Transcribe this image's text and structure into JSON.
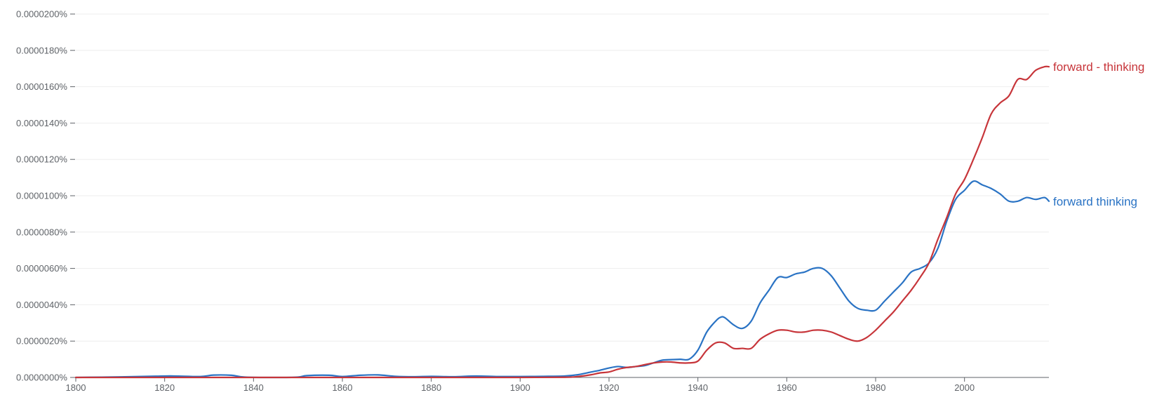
{
  "chart_data": {
    "type": "line",
    "title": "",
    "xlabel": "",
    "ylabel": "",
    "xlim": [
      1800,
      2019
    ],
    "ylim": [
      0,
      2e-05
    ],
    "grid": true,
    "legend": "inline-right",
    "x_ticks": [
      1800,
      1820,
      1840,
      1860,
      1880,
      1900,
      1920,
      1940,
      1960,
      1980,
      2000
    ],
    "x_tick_labels": [
      "1800",
      "1820",
      "1840",
      "1860",
      "1880",
      "1900",
      "1920",
      "1940",
      "1960",
      "1980",
      "2000"
    ],
    "y_ticks": [
      0,
      2e-06,
      4e-06,
      6e-06,
      8e-06,
      1e-05,
      1.2e-05,
      1.4e-05,
      1.6e-05,
      1.8e-05,
      2e-05
    ],
    "y_tick_labels": [
      "0.0000000%",
      "0.0000020%",
      "0.0000040%",
      "0.0000060%",
      "0.0000080%",
      "0.0000100%",
      "0.0000120%",
      "0.0000140%",
      "0.0000160%",
      "0.0000180%",
      "0.0000200%"
    ],
    "colors": {
      "axis": "#5f6368",
      "grid": "#eeeeee"
    },
    "series": [
      {
        "name": "forward thinking",
        "color": "#1a73e8",
        "stroke": "#2a73c4",
        "x": [
          1800,
          1810,
          1818,
          1822,
          1828,
          1831,
          1835,
          1838,
          1845,
          1850,
          1852,
          1857,
          1860,
          1864,
          1868,
          1872,
          1876,
          1880,
          1885,
          1890,
          1895,
          1900,
          1905,
          1910,
          1913,
          1916,
          1918,
          1920,
          1922,
          1924,
          1926,
          1928,
          1930,
          1932,
          1934,
          1936,
          1938,
          1940,
          1942,
          1944,
          1945,
          1946,
          1948,
          1950,
          1952,
          1954,
          1956,
          1958,
          1960,
          1962,
          1964,
          1966,
          1968,
          1970,
          1972,
          1974,
          1976,
          1978,
          1980,
          1982,
          1984,
          1986,
          1988,
          1990,
          1992,
          1994,
          1996,
          1998,
          2000,
          2002,
          2004,
          2006,
          2008,
          2010,
          2012,
          2014,
          2016,
          2018,
          2019
        ],
        "values": [
          0,
          3e-08,
          7e-08,
          8e-08,
          5e-08,
          1.3e-07,
          1.2e-07,
          2e-08,
          0,
          2e-08,
          1e-07,
          1.2e-07,
          5e-08,
          1.2e-07,
          1.4e-07,
          6e-08,
          4e-08,
          6e-08,
          4e-08,
          8e-08,
          5e-08,
          5e-08,
          6e-08,
          8e-08,
          1.5e-07,
          3e-07,
          4e-07,
          5.2e-07,
          6e-07,
          5.5e-07,
          6e-07,
          6.5e-07,
          8e-07,
          9.5e-07,
          9.8e-07,
          1e-06,
          1e-06,
          1.5e-06,
          2.5e-06,
          3.1e-06,
          3.3e-06,
          3.3e-06,
          2.9e-06,
          2.7e-06,
          3.1e-06,
          4.1e-06,
          4.8e-06,
          5.5e-06,
          5.5e-06,
          5.7e-06,
          5.8e-06,
          6e-06,
          6e-06,
          5.6e-06,
          4.9e-06,
          4.2e-06,
          3.8e-06,
          3.7e-06,
          3.7e-06,
          4.2e-06,
          4.7e-06,
          5.2e-06,
          5.8e-06,
          6e-06,
          6.3e-06,
          7.1e-06,
          8.6e-06,
          9.8e-06,
          1.03e-05,
          1.08e-05,
          1.06e-05,
          1.04e-05,
          1.01e-05,
          9.7e-06,
          9.7e-06,
          9.9e-06,
          9.8e-06,
          9.9e-06,
          9.7e-06
        ]
      },
      {
        "name": "forward - thinking",
        "color": "#c5221f",
        "stroke": "#c7353a",
        "x": [
          1800,
          1820,
          1840,
          1860,
          1880,
          1900,
          1910,
          1913,
          1916,
          1918,
          1920,
          1922,
          1924,
          1926,
          1928,
          1930,
          1932,
          1934,
          1936,
          1938,
          1940,
          1942,
          1944,
          1946,
          1948,
          1950,
          1952,
          1954,
          1956,
          1958,
          1960,
          1962,
          1964,
          1966,
          1968,
          1970,
          1972,
          1974,
          1976,
          1978,
          1980,
          1982,
          1984,
          1986,
          1988,
          1990,
          1992,
          1994,
          1996,
          1998,
          2000,
          2002,
          2004,
          2006,
          2008,
          2010,
          2012,
          2014,
          2016,
          2018,
          2019
        ],
        "values": [
          0,
          0,
          0,
          0,
          0,
          0,
          1e-08,
          5e-08,
          1.5e-07,
          2.5e-07,
          3e-07,
          4.5e-07,
          5.5e-07,
          6e-07,
          7e-07,
          8e-07,
          8.5e-07,
          8.5e-07,
          8e-07,
          8e-07,
          9e-07,
          1.5e-06,
          1.9e-06,
          1.9e-06,
          1.6e-06,
          1.6e-06,
          1.6e-06,
          2.1e-06,
          2.4e-06,
          2.6e-06,
          2.6e-06,
          2.5e-06,
          2.5e-06,
          2.6e-06,
          2.6e-06,
          2.5e-06,
          2.3e-06,
          2.1e-06,
          2e-06,
          2.2e-06,
          2.6e-06,
          3.1e-06,
          3.6e-06,
          4.2e-06,
          4.8e-06,
          5.5e-06,
          6.3e-06,
          7.6e-06,
          8.8e-06,
          1.01e-05,
          1.09e-05,
          1.2e-05,
          1.32e-05,
          1.45e-05,
          1.51e-05,
          1.55e-05,
          1.64e-05,
          1.64e-05,
          1.69e-05,
          1.71e-05,
          1.71e-05
        ]
      }
    ]
  }
}
